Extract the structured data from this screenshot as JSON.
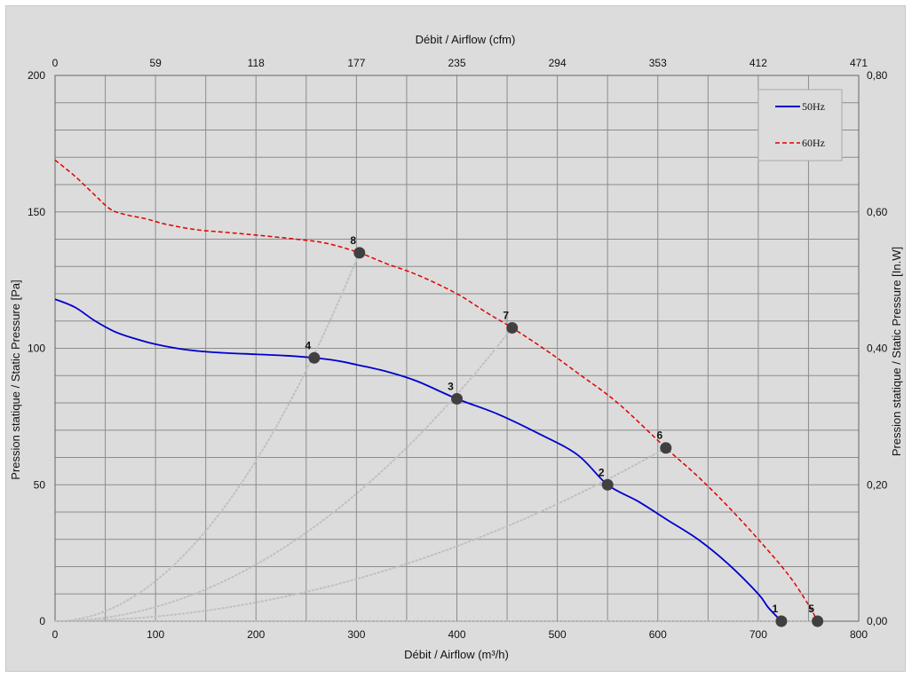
{
  "chart_data": {
    "type": "line",
    "title": "",
    "xlabel_bottom": "Débit / Airflow (m³/h)",
    "xlabel_top": "Débit / Airflow (cfm)",
    "ylabel_left": "Pression statique / Static Pressure [Pa]",
    "ylabel_right": "Pression statique / Static Pressure [In.W]",
    "xlim": [
      0,
      800
    ],
    "ylim": [
      0,
      200
    ],
    "x_ticks": [
      "0",
      "100",
      "200",
      "300",
      "400",
      "500",
      "600",
      "700",
      "800"
    ],
    "y_ticks": [
      "0",
      "50",
      "100",
      "150",
      "200"
    ],
    "top_ticks": [
      "0",
      "59",
      "118",
      "177",
      "235",
      "294",
      "353",
      "412",
      "471"
    ],
    "right_ticks": [
      "0,00",
      "0,20",
      "0,40",
      "0,60",
      "0,80"
    ],
    "grid": true,
    "legend_position": "top-right",
    "series": [
      {
        "name": "50Hz",
        "color": "#0000cc",
        "style": "solid",
        "points": [
          [
            0,
            118
          ],
          [
            20,
            115
          ],
          [
            40,
            110
          ],
          [
            60,
            106
          ],
          [
            80,
            103.5
          ],
          [
            100,
            101.5
          ],
          [
            130,
            99.5
          ],
          [
            160,
            98.5
          ],
          [
            200,
            97.8
          ],
          [
            230,
            97.3
          ],
          [
            258,
            96.5
          ],
          [
            280,
            95.5
          ],
          [
            300,
            94
          ],
          [
            330,
            91.5
          ],
          [
            360,
            88
          ],
          [
            400,
            81.5
          ],
          [
            440,
            76
          ],
          [
            480,
            69
          ],
          [
            520,
            61
          ],
          [
            550,
            50
          ],
          [
            580,
            44
          ],
          [
            610,
            37
          ],
          [
            640,
            30
          ],
          [
            670,
            21
          ],
          [
            700,
            10
          ],
          [
            710,
            5
          ],
          [
            723,
            0
          ]
        ]
      },
      {
        "name": "60Hz",
        "color": "#e00000",
        "style": "dashed",
        "points": [
          [
            0,
            169
          ],
          [
            20,
            163
          ],
          [
            40,
            156
          ],
          [
            55,
            151
          ],
          [
            70,
            149
          ],
          [
            90,
            147.5
          ],
          [
            110,
            145.5
          ],
          [
            140,
            143.5
          ],
          [
            170,
            142.5
          ],
          [
            200,
            141.5
          ],
          [
            240,
            140
          ],
          [
            270,
            138.5
          ],
          [
            303,
            135
          ],
          [
            330,
            131
          ],
          [
            360,
            127
          ],
          [
            400,
            120
          ],
          [
            430,
            113
          ],
          [
            455,
            107.5
          ],
          [
            490,
            99
          ],
          [
            520,
            91
          ],
          [
            560,
            80
          ],
          [
            608,
            63.5
          ],
          [
            640,
            53
          ],
          [
            670,
            42
          ],
          [
            700,
            30
          ],
          [
            730,
            17
          ],
          [
            750,
            6
          ],
          [
            759,
            0
          ]
        ]
      }
    ],
    "system_curves": [
      {
        "through": [
          759,
          0
        ],
        "color": "#c0c0c0"
      },
      {
        "through": [
          608,
          63.5
        ],
        "color": "#c0c0c0"
      },
      {
        "through": [
          455,
          107.5
        ],
        "color": "#c0c0c0"
      },
      {
        "through": [
          303,
          135
        ],
        "color": "#c0c0c0"
      }
    ],
    "markers": [
      {
        "label": "1",
        "x": 723,
        "y": 0
      },
      {
        "label": "2",
        "x": 550,
        "y": 50
      },
      {
        "label": "3",
        "x": 400,
        "y": 81.5
      },
      {
        "label": "4",
        "x": 258,
        "y": 96.5
      },
      {
        "label": "5",
        "x": 759,
        "y": 0
      },
      {
        "label": "6",
        "x": 608,
        "y": 63.5
      },
      {
        "label": "7",
        "x": 455,
        "y": 107.5
      },
      {
        "label": "8",
        "x": 303,
        "y": 135
      }
    ],
    "colors": {
      "background": "#dcdcdc",
      "grid": "#8c8c8c",
      "marker": "#404040"
    }
  }
}
